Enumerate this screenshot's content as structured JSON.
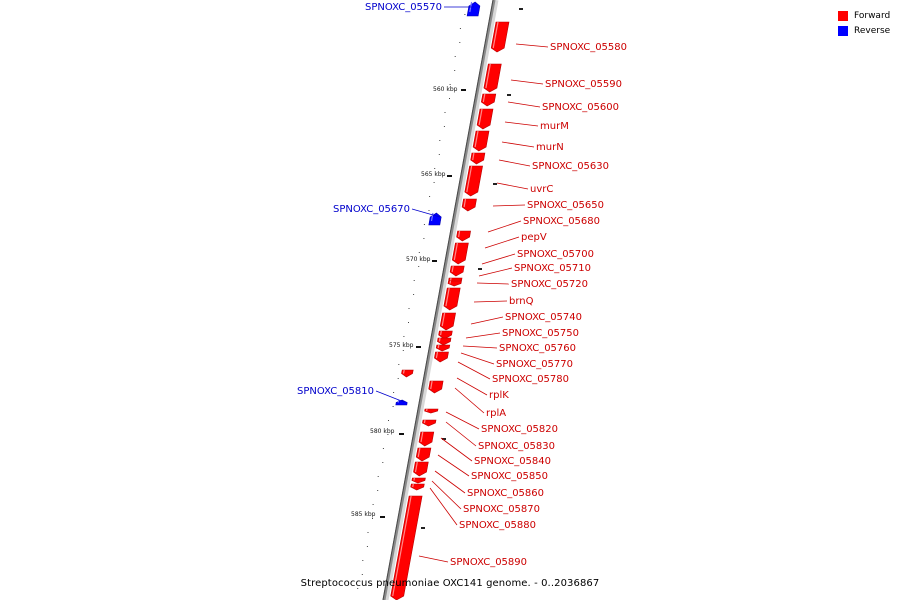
{
  "caption": "Streptococcus pneumoniae OXC141 genome. - 0..2036867",
  "legend": {
    "items": [
      {
        "label": "Forward",
        "color": "#ff0000"
      },
      {
        "label": "Reverse",
        "color": "#0000ff"
      }
    ]
  },
  "colors": {
    "forward": "#ff0000",
    "reverse": "#0000ff",
    "backbone": "#8a8a8a",
    "label_forward": "#cc0000",
    "label_reverse": "#0000cc"
  },
  "ticks": [
    "560 kbp",
    "565 kbp",
    "570 kbp",
    "575 kbp",
    "580 kbp",
    "585 kbp"
  ],
  "genes": [
    {
      "label": "SPNOXC_05570",
      "strand": "reverse"
    },
    {
      "label": "SPNOXC_05580",
      "strand": "forward"
    },
    {
      "label": "SPNOXC_05590",
      "strand": "forward"
    },
    {
      "label": "SPNOXC_05600",
      "strand": "forward"
    },
    {
      "label": "murM",
      "strand": "forward"
    },
    {
      "label": "murN",
      "strand": "forward"
    },
    {
      "label": "SPNOXC_05630",
      "strand": "forward"
    },
    {
      "label": "uvrC",
      "strand": "forward"
    },
    {
      "label": "SPNOXC_05650",
      "strand": "forward"
    },
    {
      "label": "SPNOXC_05670",
      "strand": "reverse"
    },
    {
      "label": "SPNOXC_05680",
      "strand": "forward"
    },
    {
      "label": "pepV",
      "strand": "forward"
    },
    {
      "label": "SPNOXC_05700",
      "strand": "forward"
    },
    {
      "label": "SPNOXC_05710",
      "strand": "forward"
    },
    {
      "label": "SPNOXC_05720",
      "strand": "forward"
    },
    {
      "label": "brnQ",
      "strand": "forward"
    },
    {
      "label": "SPNOXC_05740",
      "strand": "forward"
    },
    {
      "label": "SPNOXC_05750",
      "strand": "forward"
    },
    {
      "label": "SPNOXC_05760",
      "strand": "forward"
    },
    {
      "label": "SPNOXC_05770",
      "strand": "forward"
    },
    {
      "label": "SPNOXC_05780",
      "strand": "forward"
    },
    {
      "label": "rplK",
      "strand": "forward"
    },
    {
      "label": "SPNOXC_05810",
      "strand": "reverse"
    },
    {
      "label": "rplA",
      "strand": "forward"
    },
    {
      "label": "SPNOXC_05820",
      "strand": "forward"
    },
    {
      "label": "SPNOXC_05830",
      "strand": "forward"
    },
    {
      "label": "SPNOXC_05840",
      "strand": "forward"
    },
    {
      "label": "SPNOXC_05850",
      "strand": "forward"
    },
    {
      "label": "SPNOXC_05860",
      "strand": "forward"
    },
    {
      "label": "SPNOXC_05870",
      "strand": "forward"
    },
    {
      "label": "SPNOXC_05880",
      "strand": "forward"
    },
    {
      "label": "SPNOXC_05890",
      "strand": "forward"
    }
  ]
}
